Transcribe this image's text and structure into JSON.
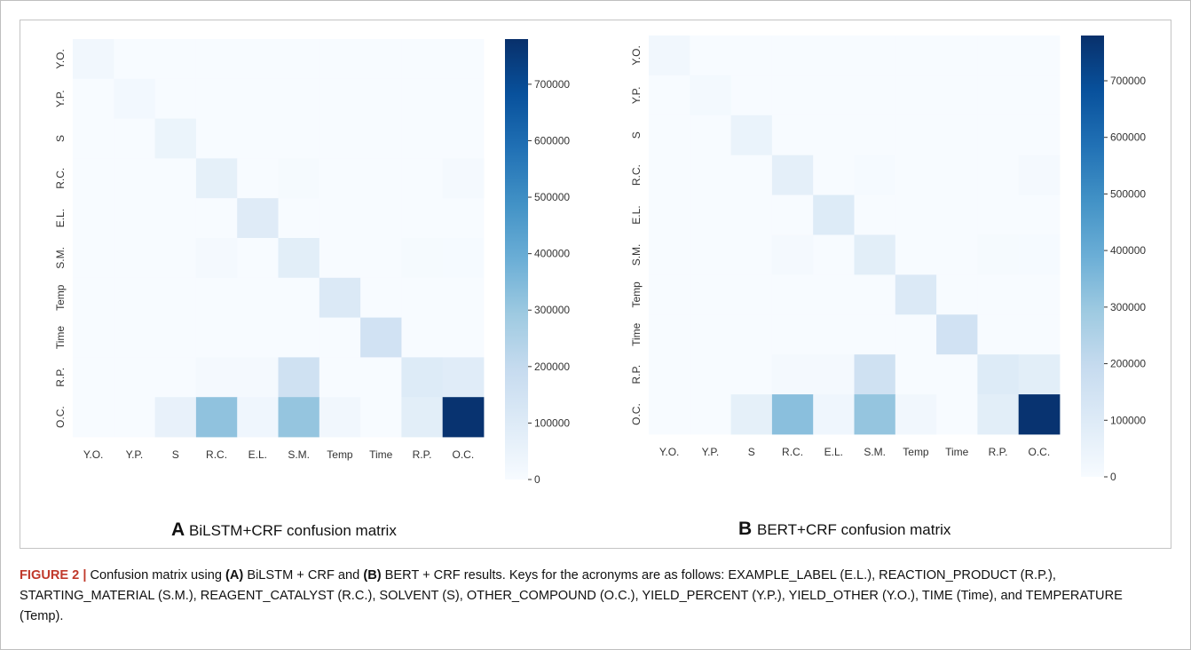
{
  "chart_data": [
    {
      "type": "heatmap",
      "panel_letter": "A",
      "title": "BiLSTM+CRF confusion matrix",
      "rows": [
        "Y.O.",
        "Y.P.",
        "S",
        "R.C.",
        "E.L.",
        "S.M.",
        "Temp",
        "Time",
        "R.P.",
        "O.C."
      ],
      "cols": [
        "Y.O.",
        "Y.P.",
        "S",
        "R.C.",
        "E.L.",
        "S.M.",
        "Temp",
        "Time",
        "R.P.",
        "O.C."
      ],
      "values": [
        [
          25000,
          0,
          0,
          0,
          0,
          0,
          0,
          0,
          0,
          0
        ],
        [
          0,
          18000,
          0,
          0,
          0,
          0,
          0,
          0,
          0,
          0
        ],
        [
          0,
          0,
          45000,
          0,
          0,
          0,
          0,
          0,
          0,
          0
        ],
        [
          0,
          0,
          0,
          70000,
          0,
          8000,
          0,
          0,
          0,
          12000
        ],
        [
          0,
          0,
          0,
          0,
          95000,
          0,
          0,
          0,
          0,
          0
        ],
        [
          0,
          0,
          0,
          10000,
          0,
          80000,
          0,
          0,
          8000,
          6000
        ],
        [
          0,
          0,
          0,
          0,
          0,
          0,
          110000,
          0,
          0,
          0
        ],
        [
          0,
          0,
          0,
          0,
          0,
          0,
          0,
          150000,
          0,
          0
        ],
        [
          0,
          0,
          0,
          10000,
          12000,
          160000,
          0,
          0,
          100000,
          90000
        ],
        [
          0,
          0,
          60000,
          320000,
          30000,
          310000,
          25000,
          0,
          80000,
          770000
        ]
      ],
      "colorbar_ticks": [
        "700000",
        "600000",
        "500000",
        "400000",
        "300000",
        "200000",
        "100000",
        "0"
      ],
      "vmax": 780000
    },
    {
      "type": "heatmap",
      "panel_letter": "B",
      "title": "BERT+CRF confusion matrix",
      "rows": [
        "Y.O.",
        "Y.P.",
        "S",
        "R.C.",
        "E.L.",
        "S.M.",
        "Temp",
        "Time",
        "R.P.",
        "O.C."
      ],
      "cols": [
        "Y.O.",
        "Y.P.",
        "S",
        "R.C.",
        "E.L.",
        "S.M.",
        "Temp",
        "Time",
        "R.P.",
        "O.C."
      ],
      "values": [
        [
          22000,
          0,
          0,
          0,
          0,
          0,
          0,
          0,
          0,
          0
        ],
        [
          0,
          15000,
          0,
          0,
          0,
          0,
          0,
          0,
          0,
          0
        ],
        [
          0,
          0,
          50000,
          0,
          0,
          0,
          0,
          0,
          0,
          0
        ],
        [
          0,
          0,
          0,
          75000,
          0,
          6000,
          0,
          0,
          0,
          12000
        ],
        [
          0,
          0,
          0,
          0,
          100000,
          0,
          0,
          0,
          0,
          0
        ],
        [
          0,
          0,
          0,
          10000,
          0,
          80000,
          0,
          0,
          8000,
          6000
        ],
        [
          0,
          0,
          0,
          0,
          0,
          0,
          110000,
          0,
          0,
          0
        ],
        [
          0,
          0,
          0,
          0,
          0,
          0,
          0,
          150000,
          0,
          0
        ],
        [
          0,
          0,
          0,
          10000,
          12000,
          160000,
          0,
          0,
          100000,
          80000
        ],
        [
          0,
          0,
          70000,
          330000,
          30000,
          310000,
          25000,
          0,
          80000,
          770000
        ]
      ],
      "colorbar_ticks": [
        "700000",
        "600000",
        "500000",
        "400000",
        "300000",
        "200000",
        "100000",
        "0"
      ],
      "vmax": 780000
    }
  ],
  "caption": {
    "figure_label": "FIGURE 2 |",
    "t1": " Confusion matrix using ",
    "a": "(A)",
    "t2": " BiLSTM + CRF and ",
    "b": "(B)",
    "t3": " BERT + CRF results. Keys for the acronyms are as follows: EXAMPLE_LABEL (E.L.), REACTION_PRODUCT (R.P.), STARTING_MATERIAL (S.M.), REAGENT_CATALYST (R.C.), SOLVENT (S), OTHER_COMPOUND (O.C.), YIELD_PERCENT (Y.P.), YIELD_OTHER (Y.O.), TIME (Time), and TEMPERATURE (Temp)."
  }
}
